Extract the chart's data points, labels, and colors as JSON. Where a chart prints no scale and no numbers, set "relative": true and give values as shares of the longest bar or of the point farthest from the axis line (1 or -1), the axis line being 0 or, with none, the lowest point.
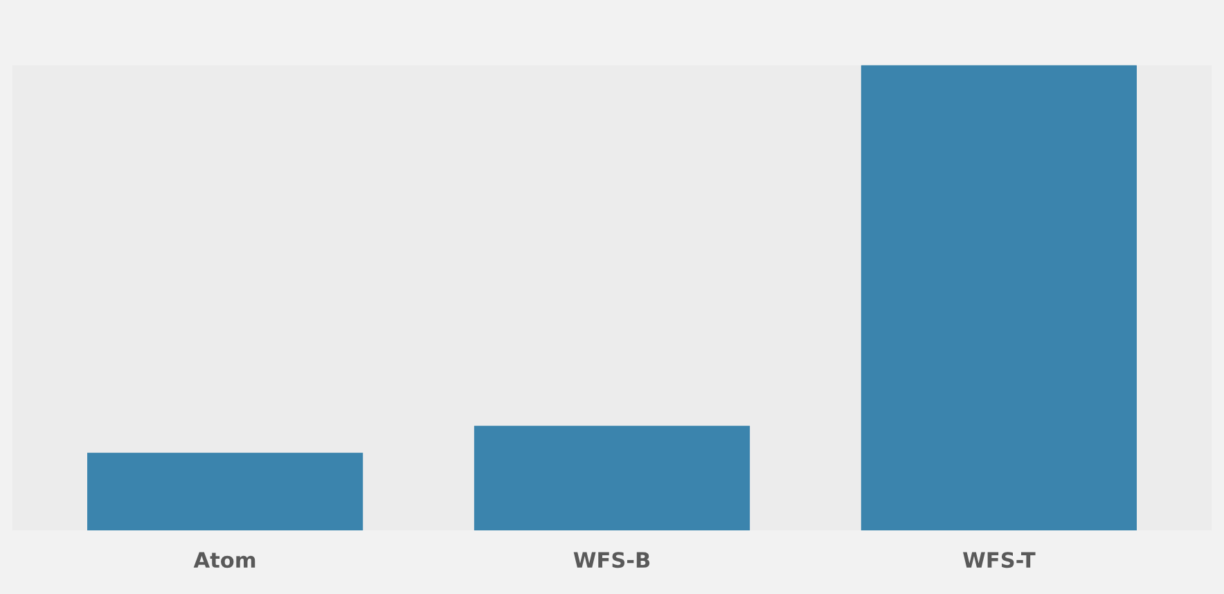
{
  "chart_data": {
    "type": "bar",
    "relative": true,
    "categories": [
      "Atom",
      "WFS-B",
      "WFS-T"
    ],
    "values": [
      0.166,
      0.224,
      1
    ],
    "color": "#3b84ad"
  }
}
